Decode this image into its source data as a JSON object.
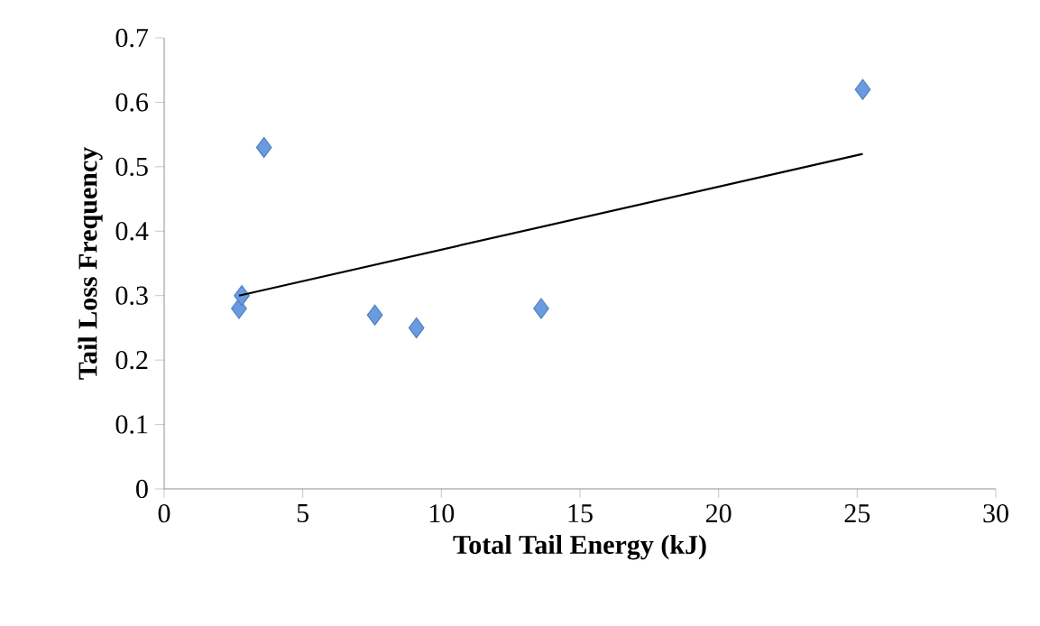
{
  "chart_data": {
    "type": "scatter",
    "xlabel": "Total Tail Energy (kJ)",
    "ylabel": "Tail Loss Frequency",
    "xlim": [
      0,
      30
    ],
    "ylim": [
      0,
      0.7
    ],
    "xticks": [
      0,
      5,
      10,
      15,
      20,
      25,
      30
    ],
    "yticks": [
      0,
      0.1,
      0.2,
      0.3,
      0.4,
      0.5,
      0.6,
      0.7
    ],
    "marker": "diamond",
    "series": [
      {
        "color": "#6a9be0",
        "x": [
          2.7,
          2.8,
          3.6,
          7.6,
          9.1,
          13.6,
          25.2
        ],
        "values": [
          0.28,
          0.3,
          0.53,
          0.27,
          0.25,
          0.28,
          0.62
        ]
      },
      {
        "type": "line",
        "color": "#000000",
        "marker": "none",
        "line_style": "solid",
        "x": [
          2.7,
          25.2
        ],
        "values": [
          0.3,
          0.52
        ]
      }
    ]
  }
}
